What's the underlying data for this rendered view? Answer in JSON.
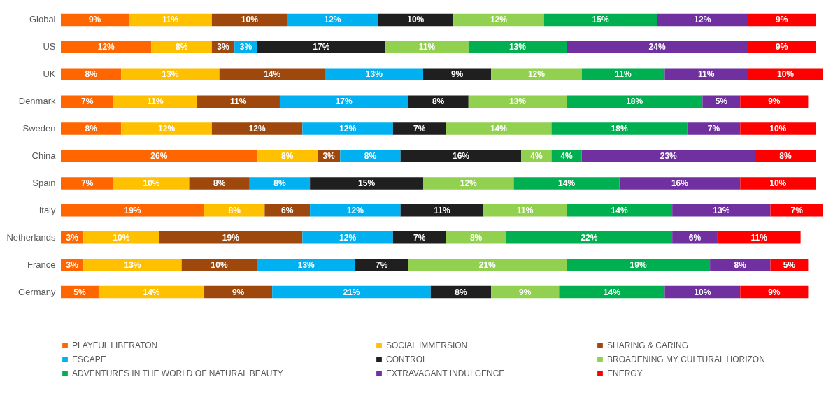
{
  "chart_data": {
    "type": "bar",
    "orientation": "horizontal",
    "stacked": true,
    "tick_labels": "y",
    "grid": false,
    "legend": "bottom",
    "categories": [
      "Global",
      "US",
      "UK",
      "Denmark",
      "Sweden",
      "China",
      "Spain",
      "Italy",
      "Netherlands",
      "France",
      "Germany"
    ],
    "series": [
      {
        "name": "PLAYFUL LIBERATON",
        "color": "#ff6600",
        "values": [
          9,
          12,
          8,
          7,
          8,
          26,
          7,
          19,
          3,
          3,
          5
        ],
        "value_labels": [
          "9%",
          "12%",
          "8%",
          "7%",
          "8%",
          "26%",
          "7%",
          "19%",
          "3%",
          "3%",
          "5%"
        ]
      },
      {
        "name": "SOCIAL IMMERSION",
        "color": "#ffc000",
        "values": [
          11,
          8,
          13,
          11,
          12,
          8,
          10,
          8,
          10,
          13,
          14
        ],
        "value_labels": [
          "11%",
          "8%",
          "13%",
          "11%",
          "12%",
          "8%",
          "10%",
          "8%",
          "10%",
          "13%",
          "14%"
        ]
      },
      {
        "name": "SHARING & CARING",
        "color": "#9e480e",
        "values": [
          10,
          3,
          14,
          11,
          12,
          3,
          8,
          6,
          19,
          10,
          9
        ],
        "value_labels": [
          "10%",
          "3%",
          "14%",
          "11%",
          "12%",
          "3%",
          "8%",
          "6%",
          "19%",
          "10%",
          "9%"
        ]
      },
      {
        "name": "ESCAPE",
        "color": "#00b0f0",
        "values": [
          12,
          3,
          13,
          17,
          12,
          8,
          8,
          12,
          12,
          13,
          21
        ],
        "value_labels": [
          "12%",
          "3%",
          "13%",
          "17%",
          "12%",
          "8%",
          "8%",
          "12%",
          "12%",
          "13%",
          "21%"
        ]
      },
      {
        "name": "CONTROL",
        "color": "#1f1f1f",
        "values": [
          10,
          17,
          9,
          8,
          7,
          16,
          15,
          11,
          7,
          7,
          8
        ],
        "value_labels": [
          "10%",
          "17%",
          "9%",
          "8%",
          "7%",
          "16%",
          "15%",
          "11%",
          "7%",
          "7%",
          "8%"
        ]
      },
      {
        "name": "BROADENING MY CULTURAL HORIZON",
        "color": "#92d050",
        "values": [
          12,
          11,
          12,
          13,
          14,
          4,
          12,
          11,
          8,
          21,
          9
        ],
        "value_labels": [
          "12%",
          "11%",
          "12%",
          "13%",
          "14%",
          "4%",
          "12%",
          "11%",
          "8%",
          "21%",
          "9%"
        ]
      },
      {
        "name": "ADVENTURES IN THE WORLD OF NATURAL BEAUTY",
        "color": "#00b050",
        "values": [
          15,
          13,
          11,
          18,
          18,
          4,
          14,
          14,
          22,
          19,
          14
        ],
        "value_labels": [
          "15%",
          "13%",
          "11%",
          "18%",
          "18%",
          "4%",
          "14%",
          "14%",
          "22%",
          "19%",
          "14%"
        ]
      },
      {
        "name": "EXTRAVAGANT INDULGENCE",
        "color": "#7030a0",
        "values": [
          12,
          24,
          11,
          5,
          7,
          23,
          16,
          13,
          6,
          8,
          10
        ],
        "value_labels": [
          "12%",
          "24%",
          "11%",
          "5%",
          "7%",
          "23%",
          "16%",
          "13%",
          "6%",
          "8%",
          "10%"
        ]
      },
      {
        "name": "ENERGY",
        "color": "#ff0000",
        "values": [
          9,
          9,
          10,
          9,
          10,
          8,
          10,
          7,
          11,
          5,
          9
        ],
        "value_labels": [
          "9%",
          "9%",
          "10%",
          "9%",
          "10%",
          "8%",
          "10%",
          "7%",
          "11%",
          "5%",
          "9%"
        ]
      }
    ]
  }
}
